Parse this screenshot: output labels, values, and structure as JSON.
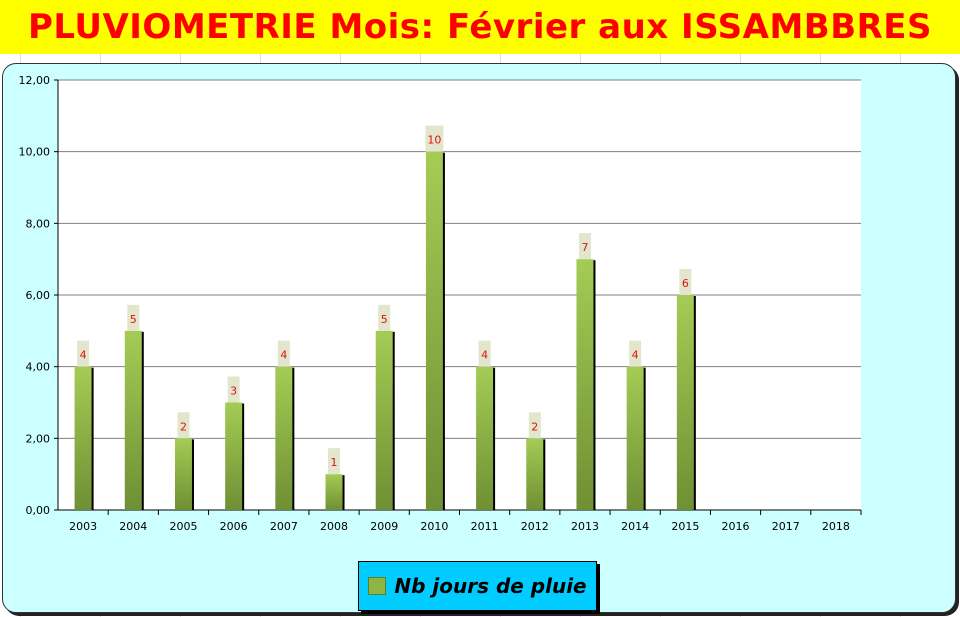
{
  "title": "PLUVIOMETRIE Mois: Février aux ISSAMBBRES",
  "colors": {
    "title_bg": "#ffff00",
    "title_text": "#ff0000",
    "chart_bg": "#ccffff",
    "plot_bg": "#ffffff",
    "bar_top": "#a4cc55",
    "bar_bottom": "#6f8f34",
    "label_bg": "#e2e6cc",
    "label_text": "#e01010",
    "legend_bg": "#00ccff"
  },
  "chart_data": {
    "type": "bar",
    "title": "PLUVIOMETRIE Mois: Février aux ISSAMBBRES",
    "categories": [
      "2003",
      "2004",
      "2005",
      "2006",
      "2007",
      "2008",
      "2009",
      "2010",
      "2011",
      "2012",
      "2013",
      "2014",
      "2015",
      "2016",
      "2017",
      "2018"
    ],
    "series": [
      {
        "name": "Nb jours de pluie",
        "values": [
          4,
          5,
          2,
          3,
          4,
          1,
          5,
          10,
          4,
          2,
          7,
          4,
          6,
          null,
          null,
          null
        ]
      }
    ],
    "ylim": [
      0,
      12
    ],
    "yticks": [
      "0,00",
      "2,00",
      "4,00",
      "6,00",
      "8,00",
      "10,00",
      "12,00"
    ],
    "grid": true,
    "legend_position": "bottom"
  }
}
